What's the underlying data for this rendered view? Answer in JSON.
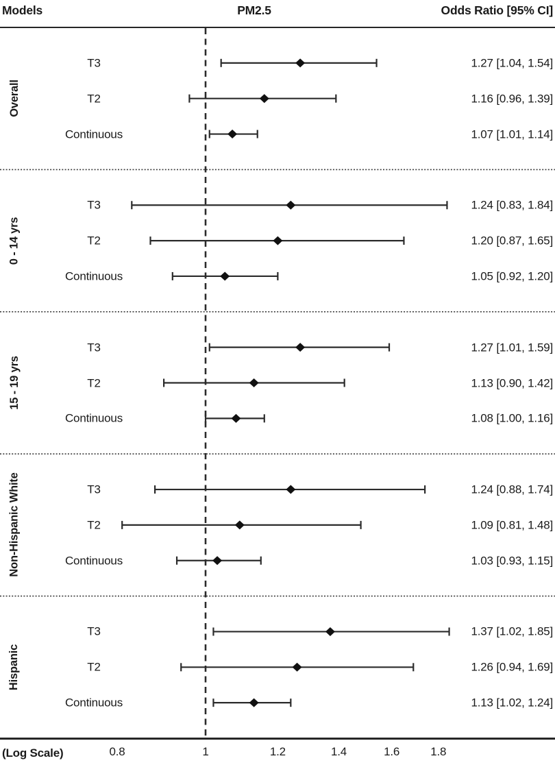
{
  "header": {
    "models": "Models",
    "exposure": "PM2.5",
    "odds_ratio": "Odds Ratio [95% CI]"
  },
  "footer": {
    "scale_note": "(Log Scale)"
  },
  "chart_data": {
    "type": "forest",
    "title": "PM2.5",
    "column_headers": [
      "Models",
      "PM2.5",
      "Odds Ratio [95% CI]"
    ],
    "x_axis": {
      "scale": "log",
      "label": "(Log Scale)",
      "reference_value": 1,
      "ticks": [
        {
          "label": "0.8",
          "value": 0.8
        },
        {
          "label": "1",
          "value": 1.0
        },
        {
          "label": "1.2",
          "value": 1.2
        },
        {
          "label": "1.4",
          "value": 1.4
        },
        {
          "label": "1.6",
          "value": 1.6
        },
        {
          "label": "1.8",
          "value": 1.8
        }
      ]
    },
    "groups": [
      {
        "label": "Overall",
        "rows": [
          {
            "model": "T3",
            "or": 1.27,
            "ci_low": 1.04,
            "ci_high": 1.54,
            "display": "1.27 [1.04, 1.54]"
          },
          {
            "model": "T2",
            "or": 1.16,
            "ci_low": 0.96,
            "ci_high": 1.39,
            "display": "1.16 [0.96, 1.39]"
          },
          {
            "model": "Continuous",
            "or": 1.07,
            "ci_low": 1.01,
            "ci_high": 1.14,
            "display": "1.07 [1.01, 1.14]"
          }
        ]
      },
      {
        "label": "0 - 14 yrs",
        "rows": [
          {
            "model": "T3",
            "or": 1.24,
            "ci_low": 0.83,
            "ci_high": 1.84,
            "display": "1.24 [0.83, 1.84]"
          },
          {
            "model": "T2",
            "or": 1.2,
            "ci_low": 0.87,
            "ci_high": 1.65,
            "display": "1.20 [0.87, 1.65]"
          },
          {
            "model": "Continuous",
            "or": 1.05,
            "ci_low": 0.92,
            "ci_high": 1.2,
            "display": "1.05 [0.92, 1.20]"
          }
        ]
      },
      {
        "label": "15 - 19 yrs",
        "rows": [
          {
            "model": "T3",
            "or": 1.27,
            "ci_low": 1.01,
            "ci_high": 1.59,
            "display": "1.27 [1.01, 1.59]"
          },
          {
            "model": "T2",
            "or": 1.13,
            "ci_low": 0.9,
            "ci_high": 1.42,
            "display": "1.13 [0.90, 1.42]"
          },
          {
            "model": "Continuous",
            "or": 1.08,
            "ci_low": 1.0,
            "ci_high": 1.16,
            "display": "1.08 [1.00, 1.16]"
          }
        ]
      },
      {
        "label": "Non-Hispanic White",
        "rows": [
          {
            "model": "T3",
            "or": 1.24,
            "ci_low": 0.88,
            "ci_high": 1.74,
            "display": "1.24 [0.88, 1.74]"
          },
          {
            "model": "T2",
            "or": 1.09,
            "ci_low": 0.81,
            "ci_high": 1.48,
            "display": "1.09 [0.81, 1.48]"
          },
          {
            "model": "Continuous",
            "or": 1.03,
            "ci_low": 0.93,
            "ci_high": 1.15,
            "display": "1.03 [0.93, 1.15]"
          }
        ]
      },
      {
        "label": "Hispanic",
        "rows": [
          {
            "model": "T3",
            "or": 1.37,
            "ci_low": 1.02,
            "ci_high": 1.85,
            "display": "1.37 [1.02, 1.85]"
          },
          {
            "model": "T2",
            "or": 1.26,
            "ci_low": 0.94,
            "ci_high": 1.69,
            "display": "1.26 [0.94, 1.69]"
          },
          {
            "model": "Continuous",
            "or": 1.13,
            "ci_low": 1.02,
            "ci_high": 1.24,
            "display": "1.13 [1.02, 1.24]"
          }
        ]
      }
    ],
    "colors": {
      "marker": "#111111",
      "line": "#2b2b2b",
      "text": "#1a1a1a"
    }
  }
}
